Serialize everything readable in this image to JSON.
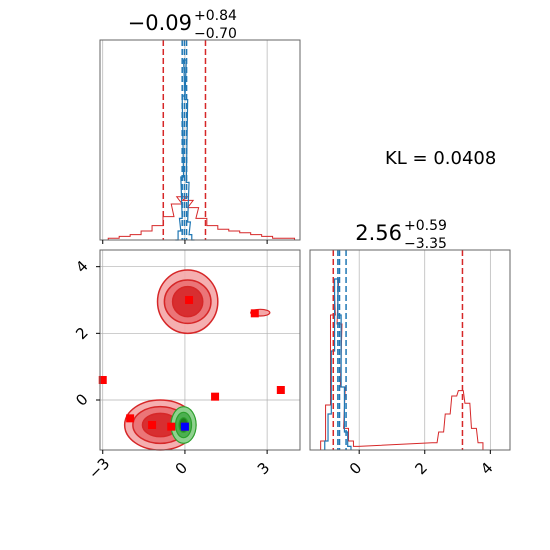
{
  "kl_label": "KL = 0.0408",
  "colors": {
    "red": "#d62728",
    "blue": "#1f77b4",
    "green": "#2ca02c",
    "marker_blue": "#0000ff",
    "grid": "#b0b0b0"
  },
  "chart_data": [
    {
      "type": "histogram",
      "panel": "top-left",
      "title_value": "−0.09",
      "title_plus": "+0.84",
      "title_minus": "−0.70",
      "xlim": [
        -3.1,
        4.2
      ],
      "xticks": [
        -3,
        0,
        3
      ],
      "grid": true,
      "red_quantile_lines": [
        -0.79,
        0.75
      ],
      "blue_quantile_lines": [
        -0.1,
        0.06
      ],
      "blue_median_line": -0.02,
      "red_hist": {
        "x": [
          -2.6,
          -2.2,
          -1.8,
          -1.4,
          -1.0,
          -0.6,
          -0.3,
          -0.1,
          0.1,
          0.3,
          0.6,
          1.0,
          1.4,
          1.8,
          2.2,
          2.6,
          3.0,
          3.4,
          3.8
        ],
        "y": [
          0.01,
          0.02,
          0.03,
          0.05,
          0.08,
          0.13,
          0.2,
          0.24,
          0.22,
          0.18,
          0.12,
          0.08,
          0.06,
          0.05,
          0.04,
          0.03,
          0.02,
          0.01,
          0.01
        ]
      },
      "blue_hist": {
        "x": [
          -0.3,
          -0.2,
          -0.15,
          -0.1,
          -0.05,
          0,
          0.05,
          0.1,
          0.15,
          0.2,
          0.3
        ],
        "y": [
          0.0,
          0.05,
          0.12,
          0.35,
          0.8,
          1.0,
          0.78,
          0.32,
          0.1,
          0.03,
          0.0
        ]
      }
    },
    {
      "type": "histogram",
      "panel": "bottom-right",
      "title_value": "2.56",
      "title_plus": "+0.59",
      "title_minus": "−3.35",
      "xlim": [
        -1.5,
        4.6
      ],
      "xticks": [
        0,
        2,
        4
      ],
      "grid": true,
      "red_quantile_lines": [
        -0.79,
        3.15
      ],
      "blue_quantile_lines": [
        -0.6,
        -0.4
      ],
      "blue_median_line": -0.65,
      "red_hist": {
        "x": [
          -1.1,
          -0.95,
          -0.8,
          -0.7,
          -0.6,
          -0.5,
          -0.4,
          -0.25,
          -0.1,
          2.3,
          2.5,
          2.7,
          2.9,
          3.1,
          3.3,
          3.5,
          3.7
        ],
        "y": [
          0.05,
          0.25,
          0.75,
          0.95,
          0.7,
          0.35,
          0.12,
          0.05,
          0.02,
          0.04,
          0.1,
          0.2,
          0.3,
          0.33,
          0.26,
          0.12,
          0.04
        ]
      },
      "blue_hist": {
        "x": [
          -1.0,
          -0.9,
          -0.8,
          -0.7,
          -0.6,
          -0.5,
          -0.4,
          -0.3
        ],
        "y": [
          0.05,
          0.2,
          0.55,
          0.95,
          0.75,
          0.35,
          0.1,
          0.02
        ]
      }
    },
    {
      "type": "scatter-contour",
      "panel": "bottom-left",
      "xlim": [
        -3.1,
        4.2
      ],
      "ylim": [
        -1.5,
        4.5
      ],
      "xticks": [
        -3,
        0,
        3
      ],
      "yticks": [
        0,
        2,
        4
      ],
      "grid": true,
      "red_markers": [
        {
          "x": 0.15,
          "y": 3.0
        },
        {
          "x": 2.55,
          "y": 2.6
        },
        {
          "x": -3.0,
          "y": 0.6
        },
        {
          "x": 3.5,
          "y": 0.3
        },
        {
          "x": 1.1,
          "y": 0.1
        },
        {
          "x": -2.0,
          "y": -0.55
        },
        {
          "x": -1.2,
          "y": -0.75
        },
        {
          "x": -0.5,
          "y": -0.8
        },
        {
          "x": 0.0,
          "y": -0.8
        }
      ],
      "blue_markers": [
        {
          "x": 0.0,
          "y": -0.8
        }
      ],
      "red_clusters": [
        {
          "cx": 0.1,
          "cy": 2.95,
          "rx": [
            2.2,
            1.7,
            1.1
          ],
          "ry": [
            0.95,
            0.65,
            0.45
          ]
        },
        {
          "cx": -0.9,
          "cy": -0.75,
          "rx": [
            2.6,
            2.0,
            1.3
          ],
          "ry": [
            0.75,
            0.55,
            0.35
          ]
        }
      ],
      "green_cluster": {
        "cx": -0.05,
        "cy": -0.75,
        "rx": [
          0.55,
          0.35,
          0.2
        ],
        "ry": [
          0.55,
          0.38,
          0.22
        ]
      }
    }
  ]
}
